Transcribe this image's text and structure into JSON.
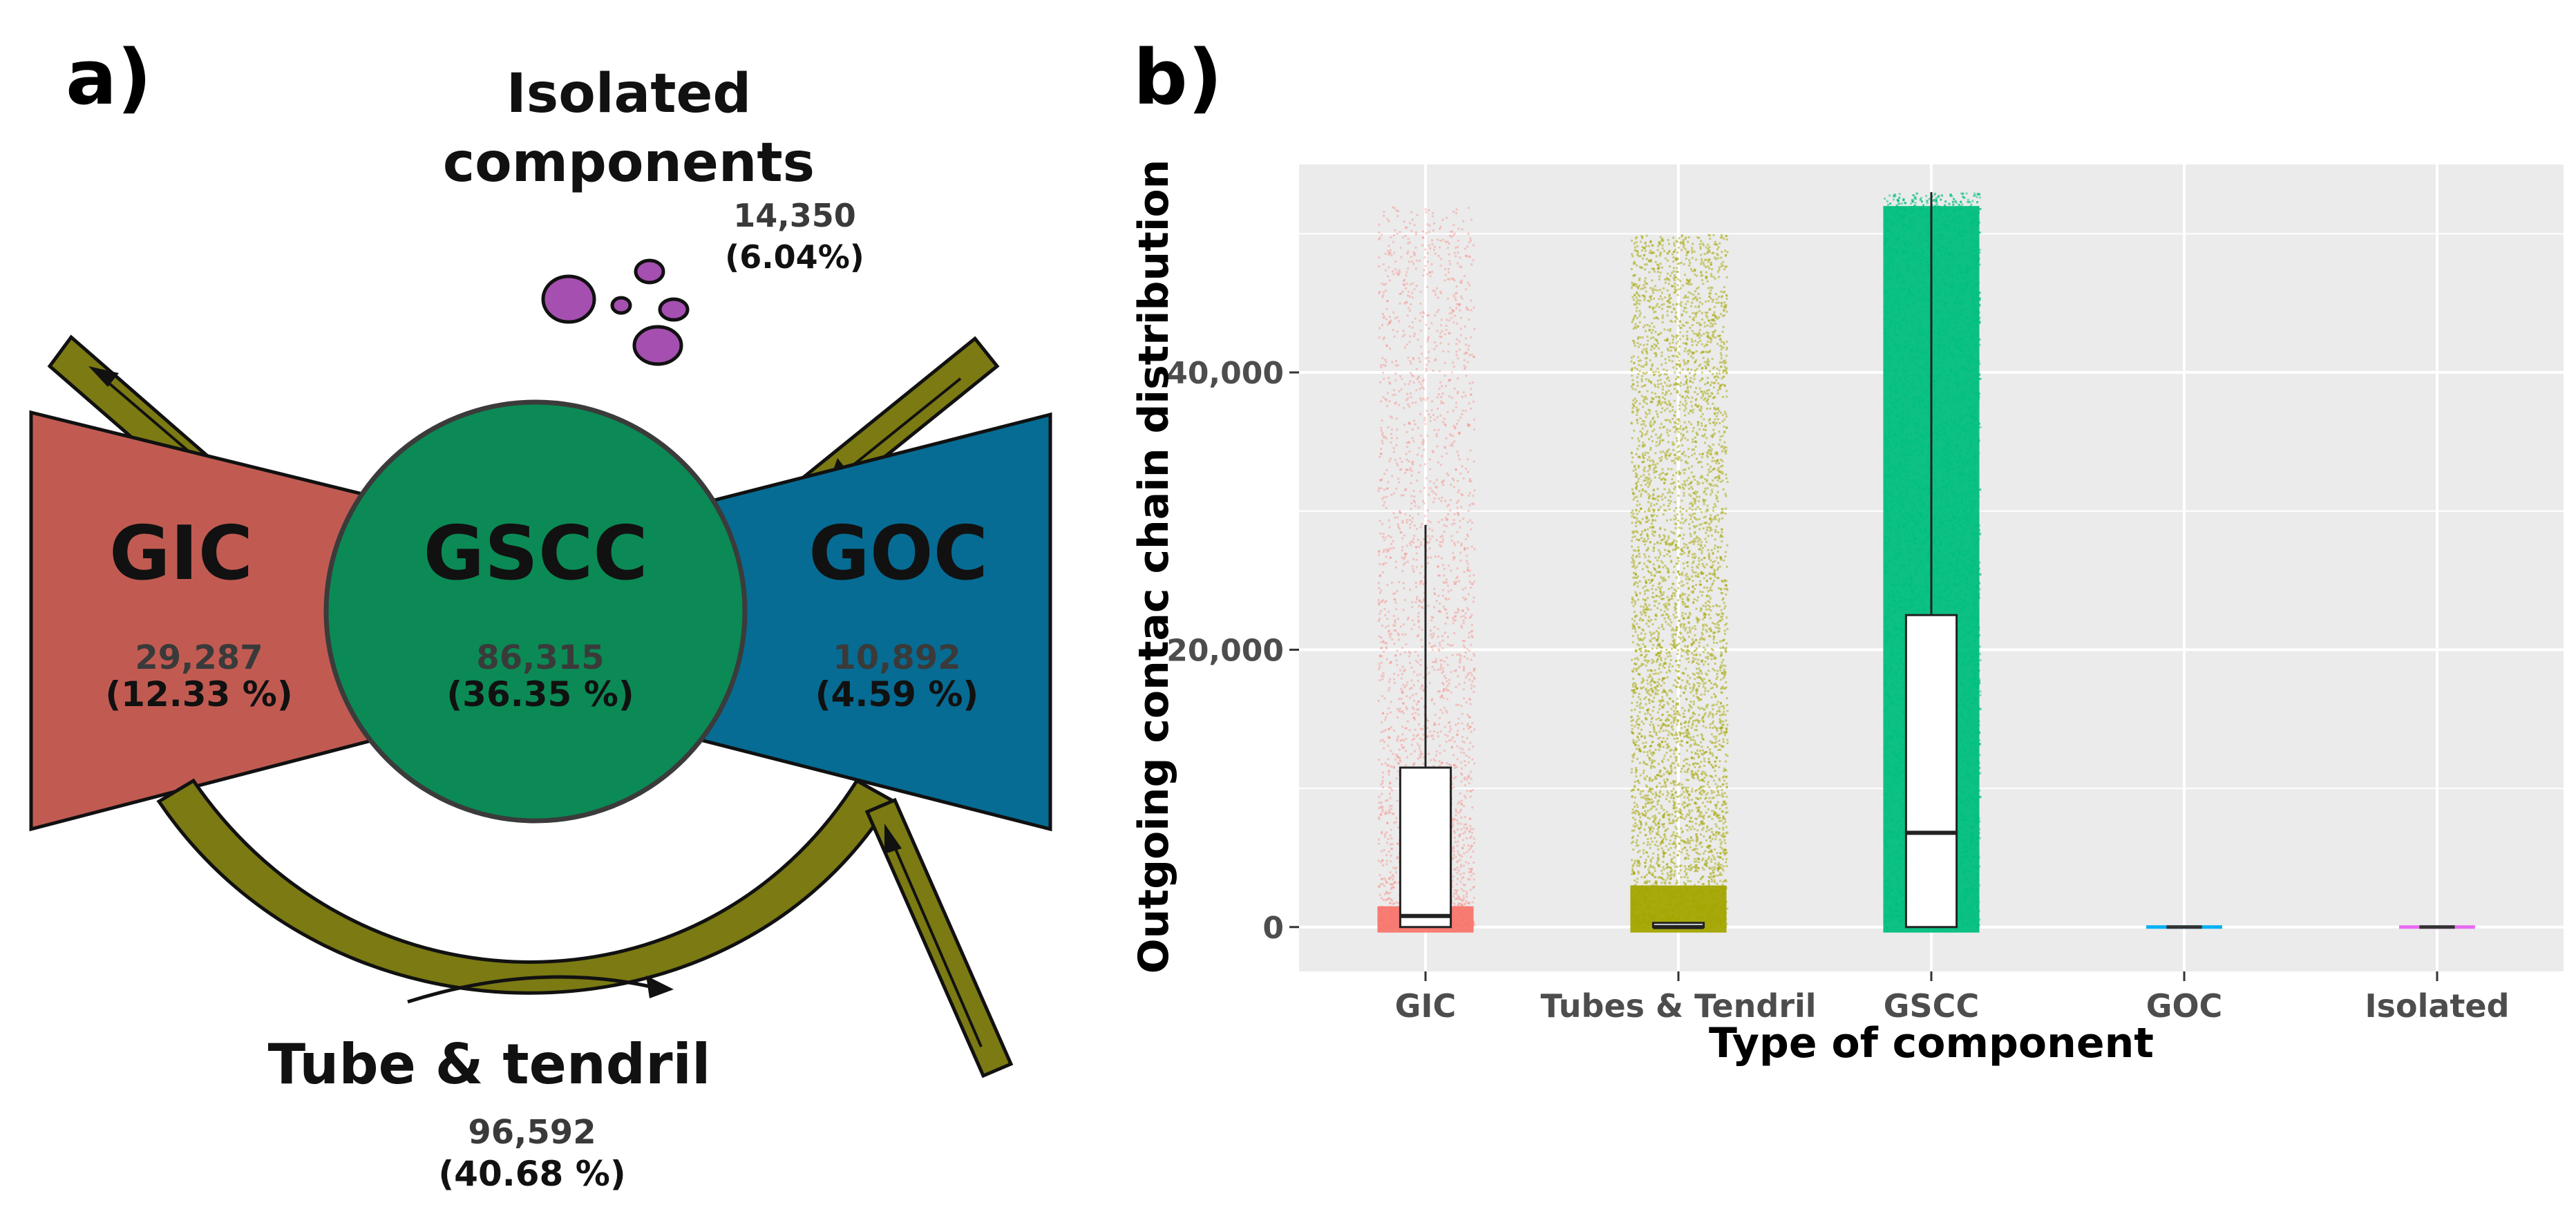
{
  "panel_a": {
    "label": "a)",
    "isolated": {
      "title_line1": "Isolated",
      "title_line2": "components",
      "count": "14,350",
      "pct": "(6.04%)",
      "color": "#a54fb0"
    },
    "gic": {
      "title": "GIC",
      "count": "29,287",
      "pct": "(12.33 %)",
      "color": "#c15b52"
    },
    "gscc": {
      "title": "GSCC",
      "count": "86,315",
      "pct": "(36.35 %)",
      "color": "#0b8a55"
    },
    "goc": {
      "title": "GOC",
      "count": "10,892",
      "pct": "(4.59 %)",
      "color": "#066c93"
    },
    "tube": {
      "title": "Tube & tendril",
      "count": "96,592",
      "pct": "(40.68 %)",
      "color": "#7b7a13"
    }
  },
  "panel_b": {
    "label": "b)"
  },
  "chart_data": {
    "type": "scatter",
    "subtype": "jittered strip plot with boxplots",
    "xlabel": "Type of component",
    "ylabel": "Outgoing contac chain distribution",
    "ylim": [
      -3200,
      55000
    ],
    "yticks": [
      0,
      20000,
      40000
    ],
    "ytick_labels": [
      "0",
      "20,000",
      "40,000"
    ],
    "grid": true,
    "legend": "none",
    "categories": [
      "GIC",
      "Tubes & Tendril",
      "GSCC",
      "GOC",
      "Isolated"
    ],
    "series": [
      {
        "category": "GIC",
        "color": "#f8766d",
        "max": 52000,
        "density": "sparse",
        "box": {
          "q1": 0,
          "median": 800,
          "q3": 11500,
          "whisker_low": 0,
          "whisker_high": 29000
        }
      },
      {
        "category": "Tubes & Tendril",
        "color": "#a3a500",
        "max": 50000,
        "density": "dense",
        "box": {
          "q1": 0,
          "median": 0,
          "q3": 300,
          "whisker_low": 0,
          "whisker_high": 300
        }
      },
      {
        "category": "GSCC",
        "color": "#00bf7d",
        "max": 53000,
        "density": "very-dense",
        "box": {
          "q1": 0,
          "median": 6800,
          "q3": 22500,
          "whisker_low": 0,
          "whisker_high": 53000
        }
      },
      {
        "category": "GOC",
        "color": "#00b0f6",
        "max": 0,
        "density": "none",
        "box": {
          "q1": 0,
          "median": 0,
          "q3": 0,
          "whisker_low": 0,
          "whisker_high": 0
        }
      },
      {
        "category": "Isolated",
        "color": "#e76bf3",
        "max": 0,
        "density": "none",
        "box": {
          "q1": 0,
          "median": 0,
          "q3": 0,
          "whisker_low": 0,
          "whisker_high": 0
        }
      }
    ]
  }
}
